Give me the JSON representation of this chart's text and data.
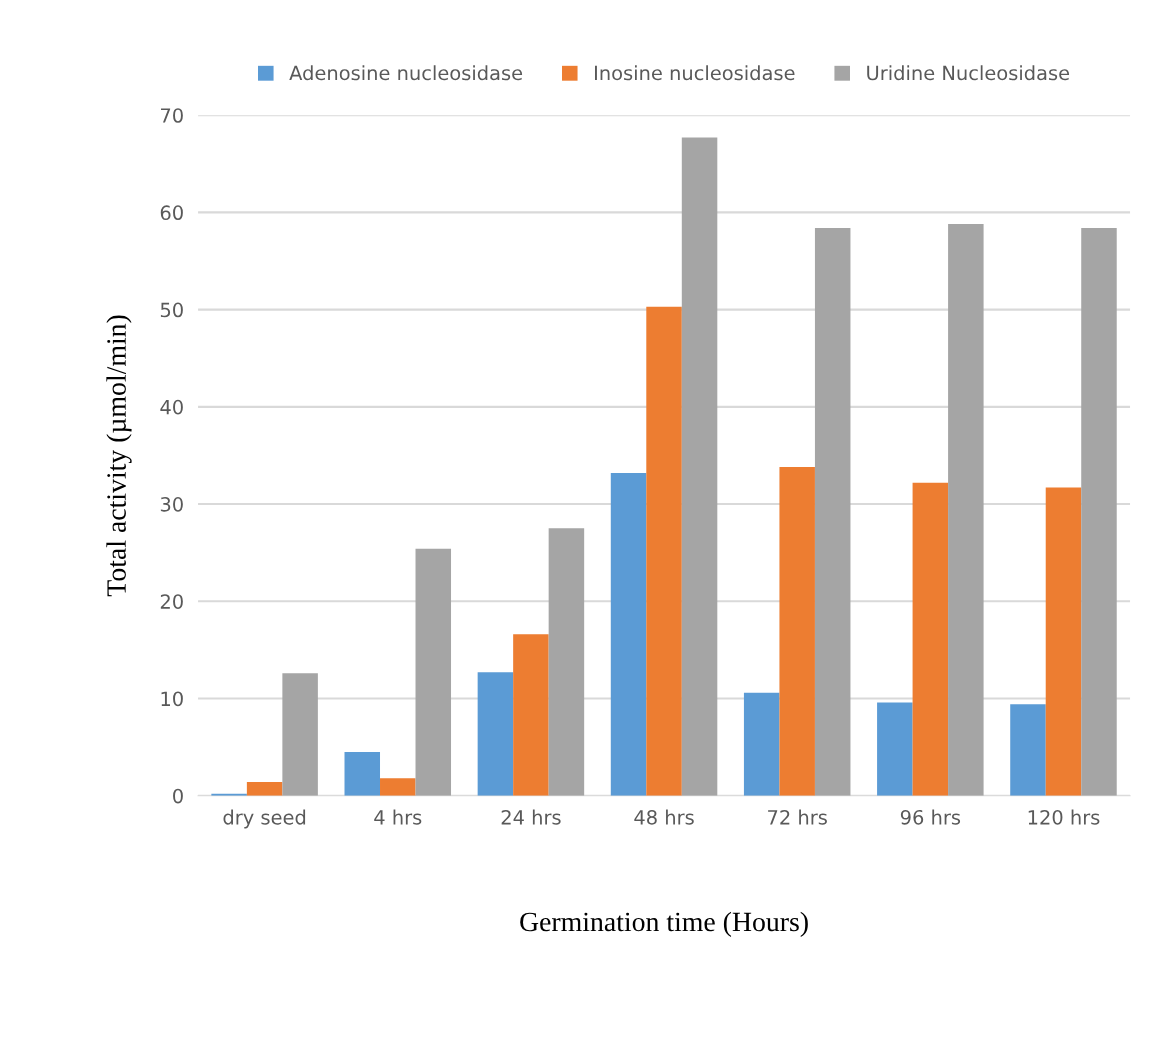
{
  "chart_data": {
    "type": "bar",
    "xlabel": "Germination time (Hours)",
    "ylabel": "Total activity (µmol/min)",
    "categories": [
      "dry seed",
      "4 hrs",
      "24 hrs",
      "48 hrs",
      "72 hrs",
      "96 hrs",
      "120 hrs"
    ],
    "series": [
      {
        "name": "Adenosine nucleosidase",
        "color": "#5b9bd5",
        "values": [
          0.2,
          4.5,
          12.7,
          33.2,
          10.6,
          9.6,
          9.4
        ]
      },
      {
        "name": "Inosine nucleosidase",
        "color": "#ed7d31",
        "values": [
          1.4,
          1.8,
          16.6,
          50.3,
          33.8,
          32.2,
          31.7
        ]
      },
      {
        "name": "Uridine Nucleosidase",
        "color": "#a5a5a5",
        "values": [
          12.6,
          25.4,
          27.5,
          67.7,
          58.4,
          58.8,
          58.4
        ]
      }
    ],
    "ylim": [
      0,
      70
    ],
    "yticks": [
      0,
      10,
      20,
      30,
      40,
      50,
      60,
      70
    ],
    "grid": "y",
    "legend": "top"
  }
}
